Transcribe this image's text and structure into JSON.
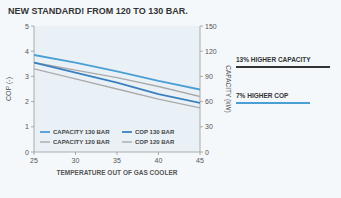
{
  "chart_data": {
    "type": "line",
    "title": "NEW STANDARD! FROM 120 TO 130 BAR.",
    "xlabel": "TEMPERATURE OUT OF GAS COOLER",
    "ylabel": "COP (-)",
    "y2label": "CAPACITY (kW)",
    "x": [
      25,
      30,
      35,
      40,
      45
    ],
    "series": [
      {
        "name": "CAPACITY 130 BAR",
        "color": "#4a9fd4",
        "values": [
          3.85,
          3.55,
          3.2,
          2.82,
          2.48
        ]
      },
      {
        "name": "CAPACITY 120 BAR",
        "color": "#aaaaaa",
        "values": [
          3.55,
          3.25,
          2.95,
          2.6,
          2.2
        ]
      },
      {
        "name": "COP 130 BAR",
        "color": "#3a7fbf",
        "values": [
          3.55,
          3.15,
          2.75,
          2.3,
          1.95
        ]
      },
      {
        "name": "COP 120 BAR",
        "color": "#aaaaaa",
        "values": [
          3.3,
          2.9,
          2.5,
          2.1,
          1.75
        ]
      }
    ],
    "xlim": [
      25,
      45
    ],
    "xticks": [
      25,
      30,
      35,
      40,
      45
    ],
    "ylim": [
      0,
      5
    ],
    "yticks": [
      0,
      1,
      2,
      3,
      4,
      5
    ],
    "y2lim": [
      0,
      150
    ],
    "y2ticks": [
      0,
      30,
      60,
      90,
      120,
      150
    ],
    "annotations": [
      "13% HIGHER CAPACITY",
      "7% HIGHER COP"
    ],
    "grid": false,
    "legend": "lower left"
  }
}
